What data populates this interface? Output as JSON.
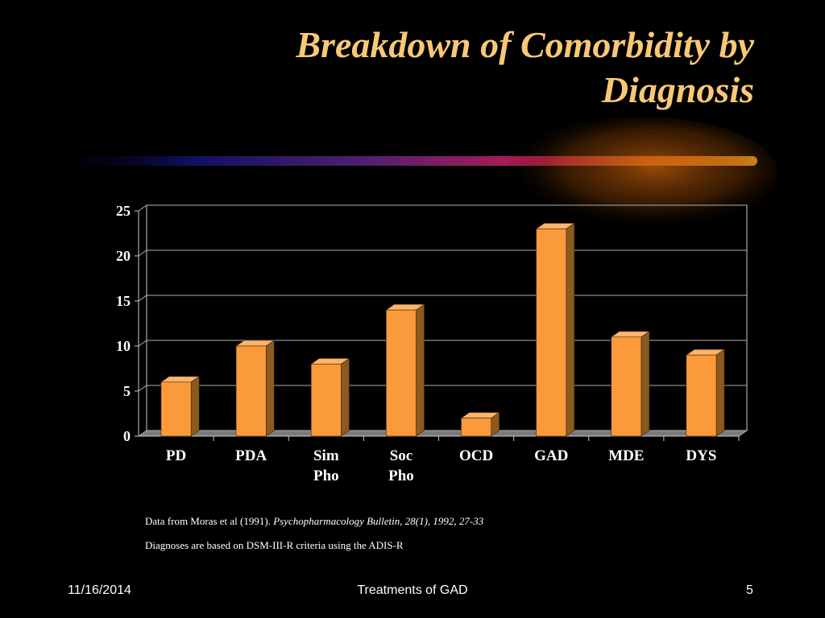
{
  "slide": {
    "title_line1": "Breakdown of Comorbidity by",
    "title_line2": "Diagnosis",
    "citation_plain": "Data from Moras et al  (1991). ",
    "citation_italic": "Psychopharmacology Bulletin, 28(1), 1992, 27-33",
    "note": "Diagnoses are based on DSM-III-R criteria using the ADIS-R",
    "footer_date": "11/16/2014",
    "footer_center": "Treatments of GAD",
    "footer_page": "5"
  },
  "colors": {
    "background": "#000000",
    "title": "#f9c876",
    "bar_front": "#fb9a3b",
    "bar_side": "#8a5a20",
    "bar_top": "#fcb36a",
    "axis_text": "#ffffff"
  },
  "chart_data": {
    "type": "bar",
    "categories": [
      [
        "PD"
      ],
      [
        "PDA"
      ],
      [
        "Sim",
        "Pho"
      ],
      [
        "Soc",
        "Pho"
      ],
      [
        "OCD"
      ],
      [
        "GAD"
      ],
      [
        "MDE"
      ],
      [
        "DYS"
      ]
    ],
    "values": [
      6,
      10,
      8,
      14,
      2,
      23,
      11,
      9
    ],
    "yticks": [
      0,
      5,
      10,
      15,
      20,
      25
    ],
    "ylim": [
      0,
      25
    ],
    "grid": true,
    "style": "3d-bar"
  }
}
